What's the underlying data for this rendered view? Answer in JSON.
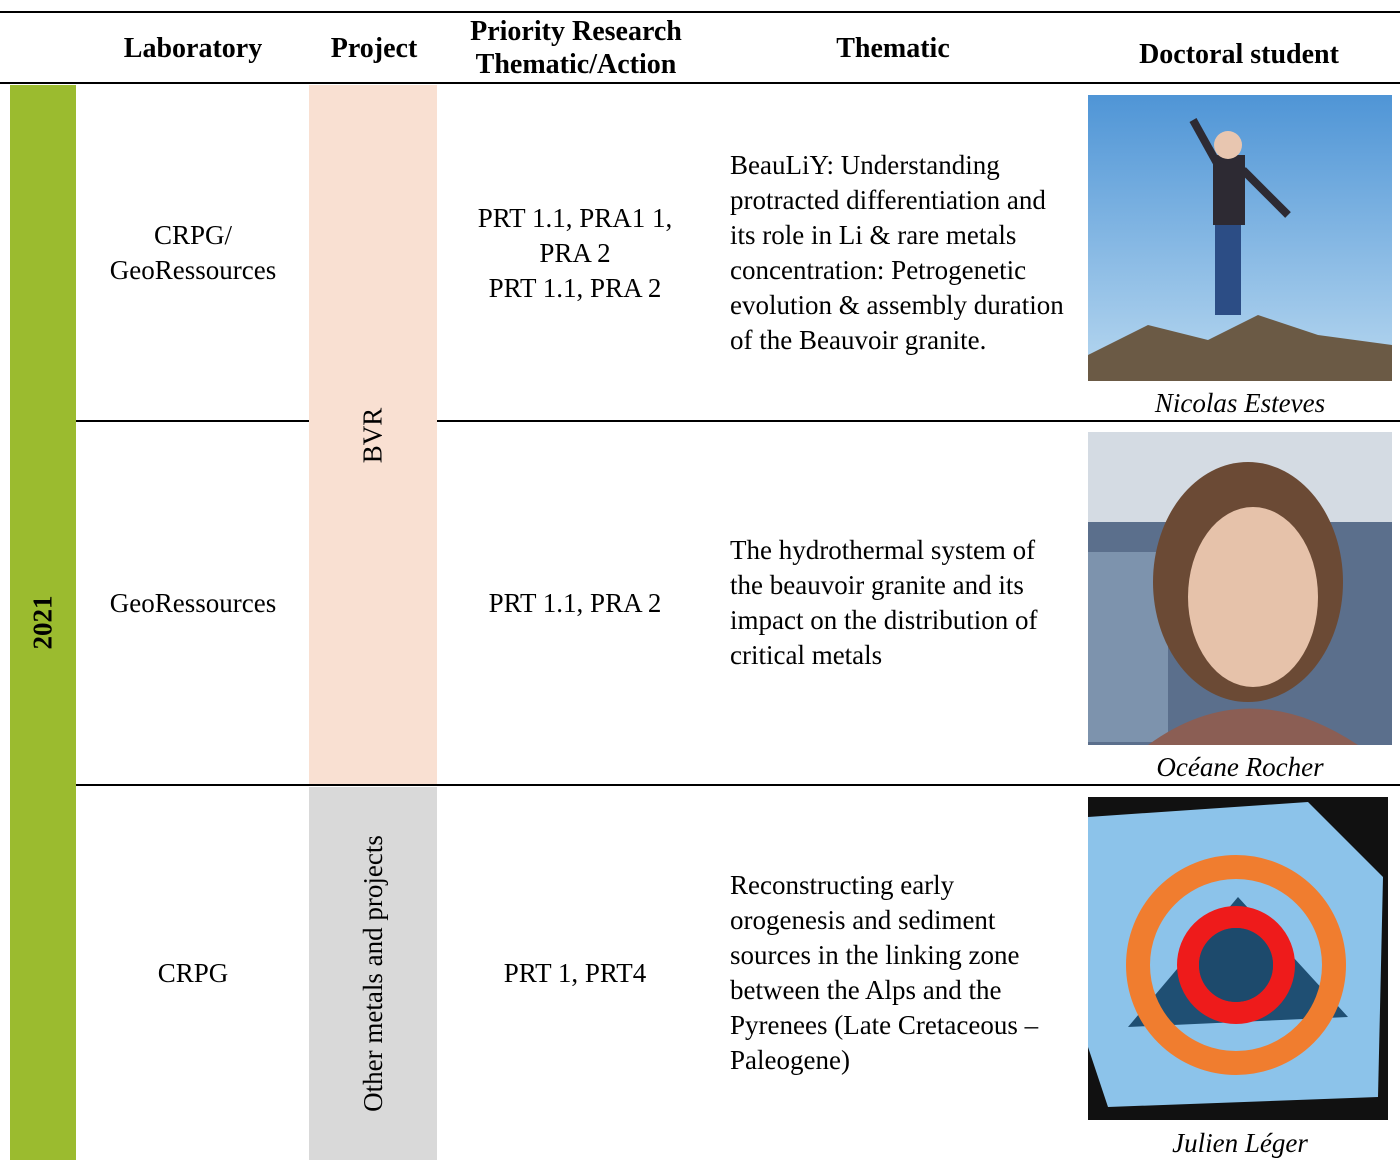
{
  "header": {
    "columns": [
      "Laboratory",
      "Project",
      "Priority Research Thematic/Action",
      "Thematic",
      "Doctoral student"
    ]
  },
  "year": "2021",
  "projects": [
    "BVR",
    "Other metals and projects"
  ],
  "rows": [
    {
      "laboratory": [
        "CRPG/",
        "GeoRessources"
      ],
      "priority": [
        "PRT 1.1, PRA1 1, PRA 2",
        "PRT 1.1, PRA 2"
      ],
      "thematic": "BeauLiY: Understanding protracted differentiation and its role in Li & rare metals concentration: Petrogenetic evolution & assembly duration of the Beauvoir granite.",
      "student": "Nicolas Esteves"
    },
    {
      "laboratory": [
        "GeoRessources"
      ],
      "priority": [
        "PRT 1.1, PRA 2"
      ],
      "thematic": "The hydrothermal system of the beauvoir granite and its impact on the distribution of critical metals",
      "student": "Océane Rocher"
    },
    {
      "laboratory": [
        "CRPG"
      ],
      "priority": [
        "PRT 1, PRT4"
      ],
      "thematic": "Reconstructing early orogenesis and sediment sources in the linking zone between the Alps and the Pyrenees (Late Cretaceous – Paleogene)",
      "student": "Julien Léger"
    }
  ]
}
